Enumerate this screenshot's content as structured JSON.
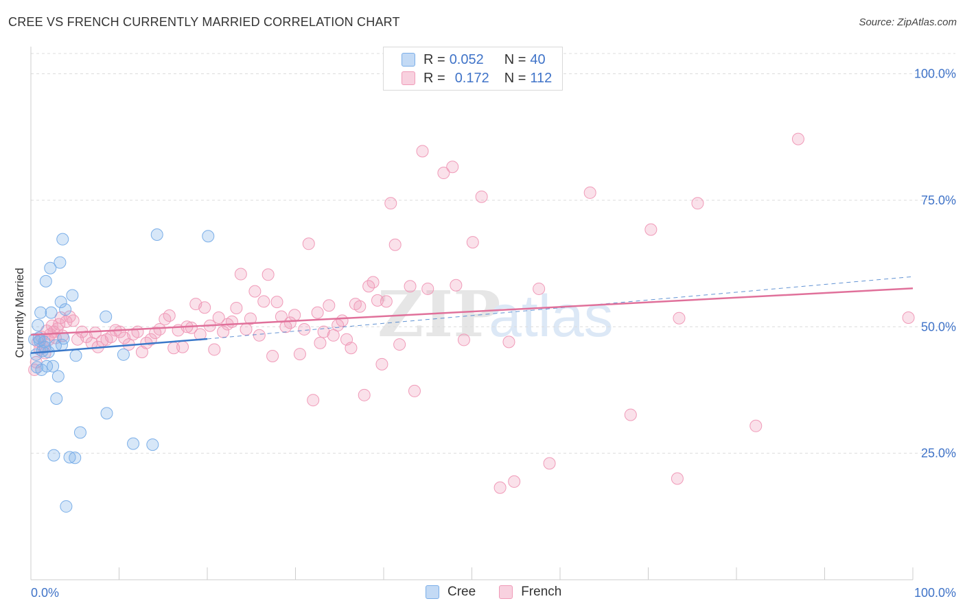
{
  "title": "CREE VS FRENCH CURRENTLY MARRIED CORRELATION CHART",
  "source": "Source: ZipAtlas.com",
  "watermark": {
    "zip": "ZIP",
    "atlas": "atlas"
  },
  "legend": {
    "rows": [
      {
        "r_label": "R =",
        "r_value": "0.052",
        "n_label": "N =",
        "n_value": "40"
      },
      {
        "r_label": "R =",
        "r_value": "0.172",
        "n_label": "N =",
        "n_value": "112"
      }
    ]
  },
  "colors": {
    "cree": "#7aaee8",
    "cree_fill": "rgba(122,174,232,0.30)",
    "cree_line": "#3a78c9",
    "french": "#f09ab8",
    "french_fill": "rgba(240,154,184,0.30)",
    "french_line": "#e0709a",
    "axis_text": "#3f73c8",
    "grid": "#dcdcdc"
  },
  "chart_data": {
    "type": "scatter",
    "title": "CREE VS FRENCH CURRENTLY MARRIED CORRELATION CHART",
    "xlabel": "",
    "ylabel": "Currently Married",
    "xlim": [
      0,
      100
    ],
    "ylim": [
      0,
      104
    ],
    "x_tick_labels": [
      "0.0%",
      "100.0%"
    ],
    "y_ticks": [
      25,
      50,
      75,
      100
    ],
    "y_tick_labels": [
      "25.0%",
      "50.0%",
      "75.0%",
      "100.0%"
    ],
    "grid": true,
    "legend_position": "bottom-center",
    "series": [
      {
        "name": "Cree",
        "r": 0.052,
        "n": 40,
        "trend": {
          "x": [
            0,
            20
          ],
          "y": [
            44.8,
            47.6
          ]
        },
        "trend_dashed": {
          "x": [
            20,
            100
          ],
          "y": [
            47.6,
            59.9
          ]
        },
        "points": [
          {
            "x": 0.4,
            "y": 47.5
          },
          {
            "x": 0.6,
            "y": 44.5
          },
          {
            "x": 0.7,
            "y": 42.0
          },
          {
            "x": 0.8,
            "y": 50.3
          },
          {
            "x": 1.0,
            "y": 47.2
          },
          {
            "x": 1.1,
            "y": 52.8
          },
          {
            "x": 1.2,
            "y": 41.5
          },
          {
            "x": 1.3,
            "y": 45.2
          },
          {
            "x": 1.5,
            "y": 47.0
          },
          {
            "x": 1.6,
            "y": 46.0
          },
          {
            "x": 1.7,
            "y": 59.0
          },
          {
            "x": 1.8,
            "y": 42.2
          },
          {
            "x": 2.0,
            "y": 45.0
          },
          {
            "x": 2.2,
            "y": 61.6
          },
          {
            "x": 2.3,
            "y": 52.8
          },
          {
            "x": 2.5,
            "y": 42.2
          },
          {
            "x": 2.6,
            "y": 24.6
          },
          {
            "x": 2.8,
            "y": 46.3
          },
          {
            "x": 2.9,
            "y": 35.8
          },
          {
            "x": 3.1,
            "y": 40.2
          },
          {
            "x": 3.3,
            "y": 62.7
          },
          {
            "x": 3.4,
            "y": 54.9
          },
          {
            "x": 3.5,
            "y": 46.4
          },
          {
            "x": 3.6,
            "y": 67.3
          },
          {
            "x": 3.7,
            "y": 47.7
          },
          {
            "x": 3.9,
            "y": 53.4
          },
          {
            "x": 4.0,
            "y": 14.5
          },
          {
            "x": 4.4,
            "y": 24.2
          },
          {
            "x": 4.7,
            "y": 56.2
          },
          {
            "x": 5.0,
            "y": 24.1
          },
          {
            "x": 5.1,
            "y": 44.3
          },
          {
            "x": 5.6,
            "y": 29.1
          },
          {
            "x": 8.5,
            "y": 52.0
          },
          {
            "x": 8.6,
            "y": 32.9
          },
          {
            "x": 10.5,
            "y": 44.5
          },
          {
            "x": 11.6,
            "y": 26.9
          },
          {
            "x": 13.8,
            "y": 26.7
          },
          {
            "x": 14.3,
            "y": 68.2
          },
          {
            "x": 20.1,
            "y": 67.9
          },
          {
            "x": 0.9,
            "y": 47.8
          }
        ]
      },
      {
        "name": "French",
        "r": 0.172,
        "n": 112,
        "trend": {
          "x": [
            0,
            100
          ],
          "y": [
            48.4,
            57.6
          ]
        },
        "points": [
          {
            "x": 0.4,
            "y": 41.5
          },
          {
            "x": 0.6,
            "y": 43.0
          },
          {
            "x": 0.8,
            "y": 47.0
          },
          {
            "x": 1.0,
            "y": 45.5
          },
          {
            "x": 1.2,
            "y": 48.0
          },
          {
            "x": 1.4,
            "y": 46.0
          },
          {
            "x": 1.6,
            "y": 44.8
          },
          {
            "x": 1.8,
            "y": 49.2
          },
          {
            "x": 2.0,
            "y": 47.4
          },
          {
            "x": 2.2,
            "y": 48.5
          },
          {
            "x": 2.4,
            "y": 50.2
          },
          {
            "x": 2.6,
            "y": 49.0
          },
          {
            "x": 2.8,
            "y": 47.8
          },
          {
            "x": 3.0,
            "y": 49.6
          },
          {
            "x": 3.2,
            "y": 50.5
          },
          {
            "x": 3.4,
            "y": 51.8
          },
          {
            "x": 3.6,
            "y": 48.2
          },
          {
            "x": 4.0,
            "y": 51.0
          },
          {
            "x": 4.4,
            "y": 52.0
          },
          {
            "x": 4.8,
            "y": 51.2
          },
          {
            "x": 5.3,
            "y": 47.5
          },
          {
            "x": 5.8,
            "y": 49.0
          },
          {
            "x": 6.3,
            "y": 48.0
          },
          {
            "x": 6.9,
            "y": 46.8
          },
          {
            "x": 7.3,
            "y": 48.8
          },
          {
            "x": 7.6,
            "y": 46.0
          },
          {
            "x": 8.1,
            "y": 47.2
          },
          {
            "x": 8.6,
            "y": 47.5
          },
          {
            "x": 9.1,
            "y": 48.0
          },
          {
            "x": 9.6,
            "y": 49.3
          },
          {
            "x": 10.1,
            "y": 49.0
          },
          {
            "x": 10.6,
            "y": 47.8
          },
          {
            "x": 11.1,
            "y": 46.5
          },
          {
            "x": 11.6,
            "y": 48.5
          },
          {
            "x": 12.1,
            "y": 49.0
          },
          {
            "x": 12.6,
            "y": 45.0
          },
          {
            "x": 13.1,
            "y": 46.8
          },
          {
            "x": 13.6,
            "y": 47.5
          },
          {
            "x": 14.1,
            "y": 48.8
          },
          {
            "x": 14.6,
            "y": 49.5
          },
          {
            "x": 15.2,
            "y": 51.5
          },
          {
            "x": 15.7,
            "y": 52.2
          },
          {
            "x": 16.2,
            "y": 45.8
          },
          {
            "x": 16.7,
            "y": 49.3
          },
          {
            "x": 17.2,
            "y": 46.0
          },
          {
            "x": 17.7,
            "y": 50.0
          },
          {
            "x": 18.2,
            "y": 49.8
          },
          {
            "x": 18.7,
            "y": 54.5
          },
          {
            "x": 19.2,
            "y": 48.5
          },
          {
            "x": 19.7,
            "y": 53.8
          },
          {
            "x": 20.3,
            "y": 50.2
          },
          {
            "x": 20.8,
            "y": 45.5
          },
          {
            "x": 21.3,
            "y": 51.8
          },
          {
            "x": 21.8,
            "y": 49.0
          },
          {
            "x": 22.3,
            "y": 50.5
          },
          {
            "x": 22.8,
            "y": 51.0
          },
          {
            "x": 23.3,
            "y": 53.7
          },
          {
            "x": 23.8,
            "y": 60.4
          },
          {
            "x": 24.4,
            "y": 49.5
          },
          {
            "x": 24.9,
            "y": 51.6
          },
          {
            "x": 25.4,
            "y": 57.0
          },
          {
            "x": 25.9,
            "y": 48.3
          },
          {
            "x": 26.4,
            "y": 55.0
          },
          {
            "x": 26.9,
            "y": 60.3
          },
          {
            "x": 27.4,
            "y": 44.2
          },
          {
            "x": 27.9,
            "y": 54.9
          },
          {
            "x": 28.4,
            "y": 52.0
          },
          {
            "x": 28.9,
            "y": 50.0
          },
          {
            "x": 29.4,
            "y": 50.8
          },
          {
            "x": 29.9,
            "y": 52.3
          },
          {
            "x": 30.5,
            "y": 44.6
          },
          {
            "x": 31.0,
            "y": 49.5
          },
          {
            "x": 31.5,
            "y": 66.4
          },
          {
            "x": 32.0,
            "y": 35.5
          },
          {
            "x": 32.5,
            "y": 52.8
          },
          {
            "x": 32.8,
            "y": 46.8
          },
          {
            "x": 33.2,
            "y": 49.0
          },
          {
            "x": 33.8,
            "y": 54.2
          },
          {
            "x": 34.3,
            "y": 48.3
          },
          {
            "x": 34.8,
            "y": 50.3
          },
          {
            "x": 35.3,
            "y": 51.2
          },
          {
            "x": 35.8,
            "y": 47.5
          },
          {
            "x": 36.3,
            "y": 45.8
          },
          {
            "x": 36.8,
            "y": 54.5
          },
          {
            "x": 37.3,
            "y": 54.0
          },
          {
            "x": 37.8,
            "y": 36.5
          },
          {
            "x": 38.3,
            "y": 58.0
          },
          {
            "x": 38.8,
            "y": 58.8
          },
          {
            "x": 39.3,
            "y": 55.2
          },
          {
            "x": 39.8,
            "y": 42.6
          },
          {
            "x": 40.3,
            "y": 55.0
          },
          {
            "x": 40.8,
            "y": 74.4
          },
          {
            "x": 41.3,
            "y": 66.2
          },
          {
            "x": 41.8,
            "y": 46.5
          },
          {
            "x": 43.0,
            "y": 58.0
          },
          {
            "x": 43.5,
            "y": 37.3
          },
          {
            "x": 44.4,
            "y": 84.7
          },
          {
            "x": 45.0,
            "y": 57.5
          },
          {
            "x": 46.8,
            "y": 80.4
          },
          {
            "x": 47.8,
            "y": 81.6
          },
          {
            "x": 48.2,
            "y": 58.2
          },
          {
            "x": 49.1,
            "y": 47.4
          },
          {
            "x": 50.1,
            "y": 66.7
          },
          {
            "x": 51.1,
            "y": 75.7
          },
          {
            "x": 54.2,
            "y": 47.0
          },
          {
            "x": 54.8,
            "y": 19.4
          },
          {
            "x": 57.6,
            "y": 57.5
          },
          {
            "x": 58.8,
            "y": 23.0
          },
          {
            "x": 63.4,
            "y": 76.5
          },
          {
            "x": 68.0,
            "y": 32.6
          },
          {
            "x": 70.3,
            "y": 69.2
          },
          {
            "x": 73.3,
            "y": 20.0
          },
          {
            "x": 73.5,
            "y": 51.7
          },
          {
            "x": 75.6,
            "y": 74.4
          },
          {
            "x": 82.2,
            "y": 30.4
          },
          {
            "x": 87.0,
            "y": 87.1
          },
          {
            "x": 99.5,
            "y": 51.8
          },
          {
            "x": 53.2,
            "y": 18.2
          }
        ]
      }
    ]
  },
  "bottom_legend": [
    {
      "label": "Cree"
    },
    {
      "label": "French"
    }
  ]
}
